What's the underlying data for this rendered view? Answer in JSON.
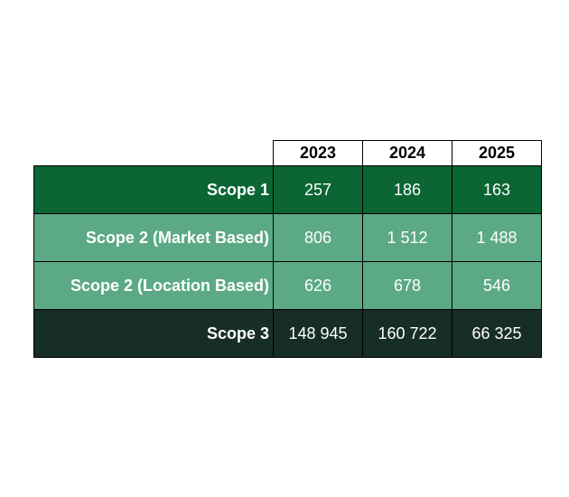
{
  "table": {
    "header": [
      "2023",
      "2024",
      "2025"
    ],
    "rows": [
      [
        "Scope 1",
        "257",
        "186",
        "163"
      ],
      [
        "Scope 2 (Market Based)",
        "806",
        "1 512",
        "1 488"
      ],
      [
        "Scope 2 (Location Based)",
        "626",
        "678",
        "546"
      ],
      [
        "Scope 3",
        "148 945",
        "160 722",
        "66 325"
      ]
    ]
  }
}
